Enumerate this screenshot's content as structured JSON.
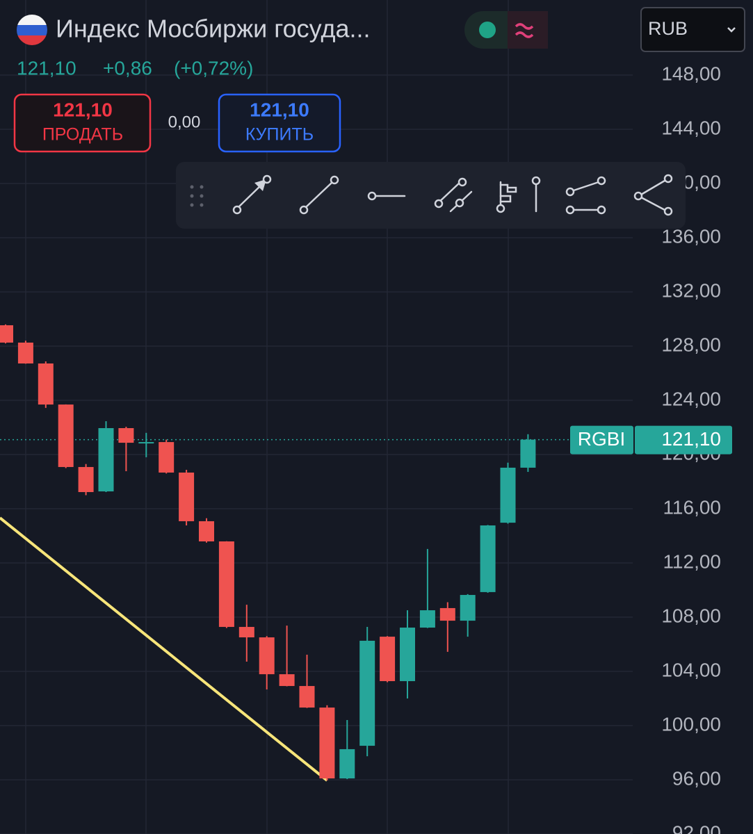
{
  "header": {
    "title": "Индекс Мосбиржи госуда...",
    "price": "121,10",
    "change": "+0,86",
    "change_pct": "(+0,72%)",
    "sell_price": "121,10",
    "sell_label": "ПРОДАТЬ",
    "spread": "0,00",
    "buy_price": "121,10",
    "buy_label": "КУПИТЬ",
    "currency": "RUB"
  },
  "chart_data": {
    "type": "candlestick",
    "symbol": "RGBI",
    "up_color": "#26a69a",
    "down_color": "#ef5350",
    "open": [
      129.54,
      128.26,
      126.72,
      123.69,
      119.08,
      117.28,
      121.95,
      120.9,
      120.92,
      118.67,
      115.08,
      113.59,
      107.28,
      106.51,
      103.79,
      102.92,
      101.33,
      96.1,
      98.51,
      106.56,
      103.28,
      107.23,
      108.67,
      107.74,
      109.85,
      114.97,
      119.03
    ],
    "high": [
      129.6,
      128.4,
      126.87,
      123.7,
      119.3,
      122.46,
      122.05,
      121.6,
      121.1,
      118.87,
      115.3,
      113.6,
      108.92,
      106.6,
      107.38,
      105.23,
      101.5,
      100.41,
      107.28,
      106.6,
      108.51,
      113.03,
      109.1,
      109.7,
      114.8,
      119.4,
      121.5
    ],
    "low": [
      128.2,
      126.7,
      123.44,
      119.0,
      117.0,
      117.23,
      118.77,
      119.8,
      118.6,
      114.77,
      113.5,
      107.2,
      104.72,
      102.67,
      102.9,
      101.3,
      95.95,
      96.05,
      97.74,
      103.2,
      102.0,
      107.2,
      105.44,
      106.56,
      109.8,
      114.9,
      118.72
    ],
    "close": [
      128.26,
      126.72,
      123.69,
      119.08,
      117.23,
      121.95,
      120.87,
      120.92,
      118.67,
      115.08,
      113.59,
      107.28,
      106.51,
      103.79,
      102.92,
      101.33,
      96.1,
      98.26,
      106.26,
      103.28,
      107.23,
      108.51,
      107.74,
      109.64,
      114.77,
      119.03,
      121.1
    ],
    "ylim": [
      92,
      153.54
    ],
    "yticks": [
      {
        "value": 92,
        "label": "92,00"
      },
      {
        "value": 96,
        "label": "96,00"
      },
      {
        "value": 100,
        "label": "100,00"
      },
      {
        "value": 104,
        "label": "104,00"
      },
      {
        "value": 108,
        "label": "108,00"
      },
      {
        "value": 112,
        "label": "112,00"
      },
      {
        "value": 116,
        "label": "116,00"
      },
      {
        "value": 120,
        "label": "120,00"
      },
      {
        "value": 124,
        "label": "124,00"
      },
      {
        "value": 128,
        "label": "128,00"
      },
      {
        "value": 132,
        "label": "132,00"
      },
      {
        "value": 136,
        "label": "136,00"
      },
      {
        "value": 140,
        "label": "140,00"
      },
      {
        "value": 144,
        "label": "144,00"
      },
      {
        "value": 148,
        "label": "148,00"
      }
    ],
    "grid": true,
    "last_price": {
      "value": 121.1,
      "label": "121,10"
    },
    "trend_line": {
      "color": "#f7e57a",
      "x": [
        -0.28,
        16.0
      ],
      "values": [
        115.33,
        95.95
      ]
    }
  }
}
